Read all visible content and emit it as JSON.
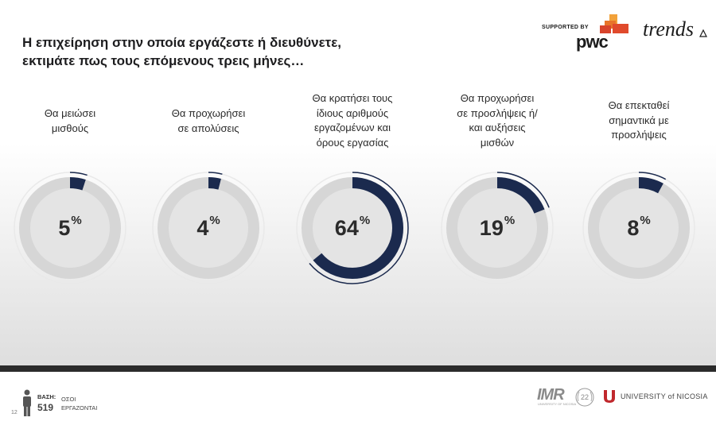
{
  "header": {
    "title_line1": "Η επιχείρηση στην οποία εργάζεστε ή διευθύνετε,",
    "title_line2": "εκτιμάτε πως τους επόμενους τρεις μήνες…",
    "supported_by": "SUPPORTED BY",
    "sponsor": "pwc",
    "brand": "trends"
  },
  "chart_data": {
    "type": "donut",
    "unit": "%",
    "items": [
      {
        "label": [
          "Θα μειώσει",
          "μισθούς"
        ],
        "value": 5
      },
      {
        "label": [
          "Θα προχωρήσει",
          "σε απολύσεις"
        ],
        "value": 4
      },
      {
        "label": [
          "Θα κρατήσει τους",
          "ίδιους αριθμούς",
          "εργαζομένων και",
          "όρους εργασίας"
        ],
        "value": 64
      },
      {
        "label": [
          "Θα προχωρήσει",
          "σε προσλήψεις ή/",
          "και αυξήσεις",
          "μισθών"
        ],
        "value": 19
      },
      {
        "label": [
          "Θα επεκταθεί",
          "σημαντικά με",
          "προσλήψεις"
        ],
        "value": 8
      }
    ],
    "colors": {
      "fill": "#1b2a4e",
      "track": "#d6d6d6",
      "inner": "#e4e4e4"
    }
  },
  "footer": {
    "base_label": "ΒΑΣΗ:",
    "base_value": "519",
    "base_desc_line1": "ΟΣΟΙ",
    "base_desc_line2": "ΕΡΓΑΖΟΝΤΑΙ",
    "page_number": "12",
    "imr": "IMR",
    "imr_sub": "UNIVERSITY OF NICOSIA",
    "seal_text": "22",
    "university": "UNIVERSITY of NICOSIA"
  }
}
